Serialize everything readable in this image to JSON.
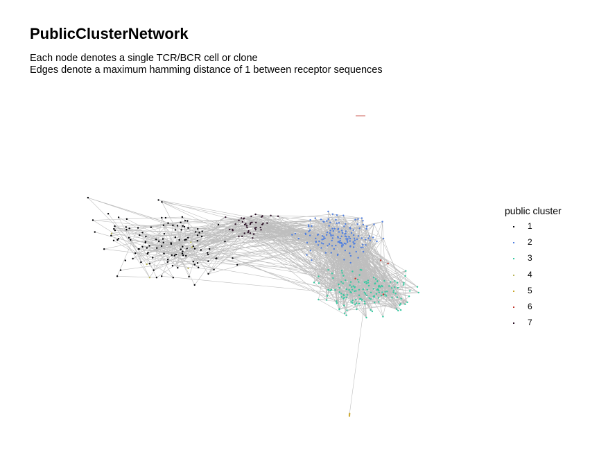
{
  "title": "PublicClusterNetwork",
  "subtitle_lines": [
    "Each node denotes a single TCR/BCR cell or clone",
    "Edges denote a maximum hamming distance of 1 between receptor sequences"
  ],
  "chart_data": {
    "type": "network",
    "title": "PublicClusterNetwork",
    "node_meaning": "Each node denotes a single TCR/BCR cell or clone",
    "edge_meaning": "Edges denote a maximum hamming distance of 1 between receptor sequences",
    "edge_color": "#bebebe",
    "legend": {
      "title": "public cluster",
      "placement": "right",
      "entries": [
        {
          "label": "1",
          "color": "#000004"
        },
        {
          "label": "2",
          "color": "#4f7fe0"
        },
        {
          "label": "3",
          "color": "#35c9a0"
        },
        {
          "label": "4",
          "color": "#b8b55a"
        },
        {
          "label": "5",
          "color": "#c9a52a"
        },
        {
          "label": "6",
          "color": "#c0342a"
        },
        {
          "label": "7",
          "color": "#2a0f25"
        }
      ]
    },
    "approx_node_counts": {
      "1": 120,
      "2": 150,
      "3": 150,
      "4": 6,
      "5": 3,
      "6": 4,
      "7": 40
    },
    "axes": "none",
    "grid": false
  }
}
